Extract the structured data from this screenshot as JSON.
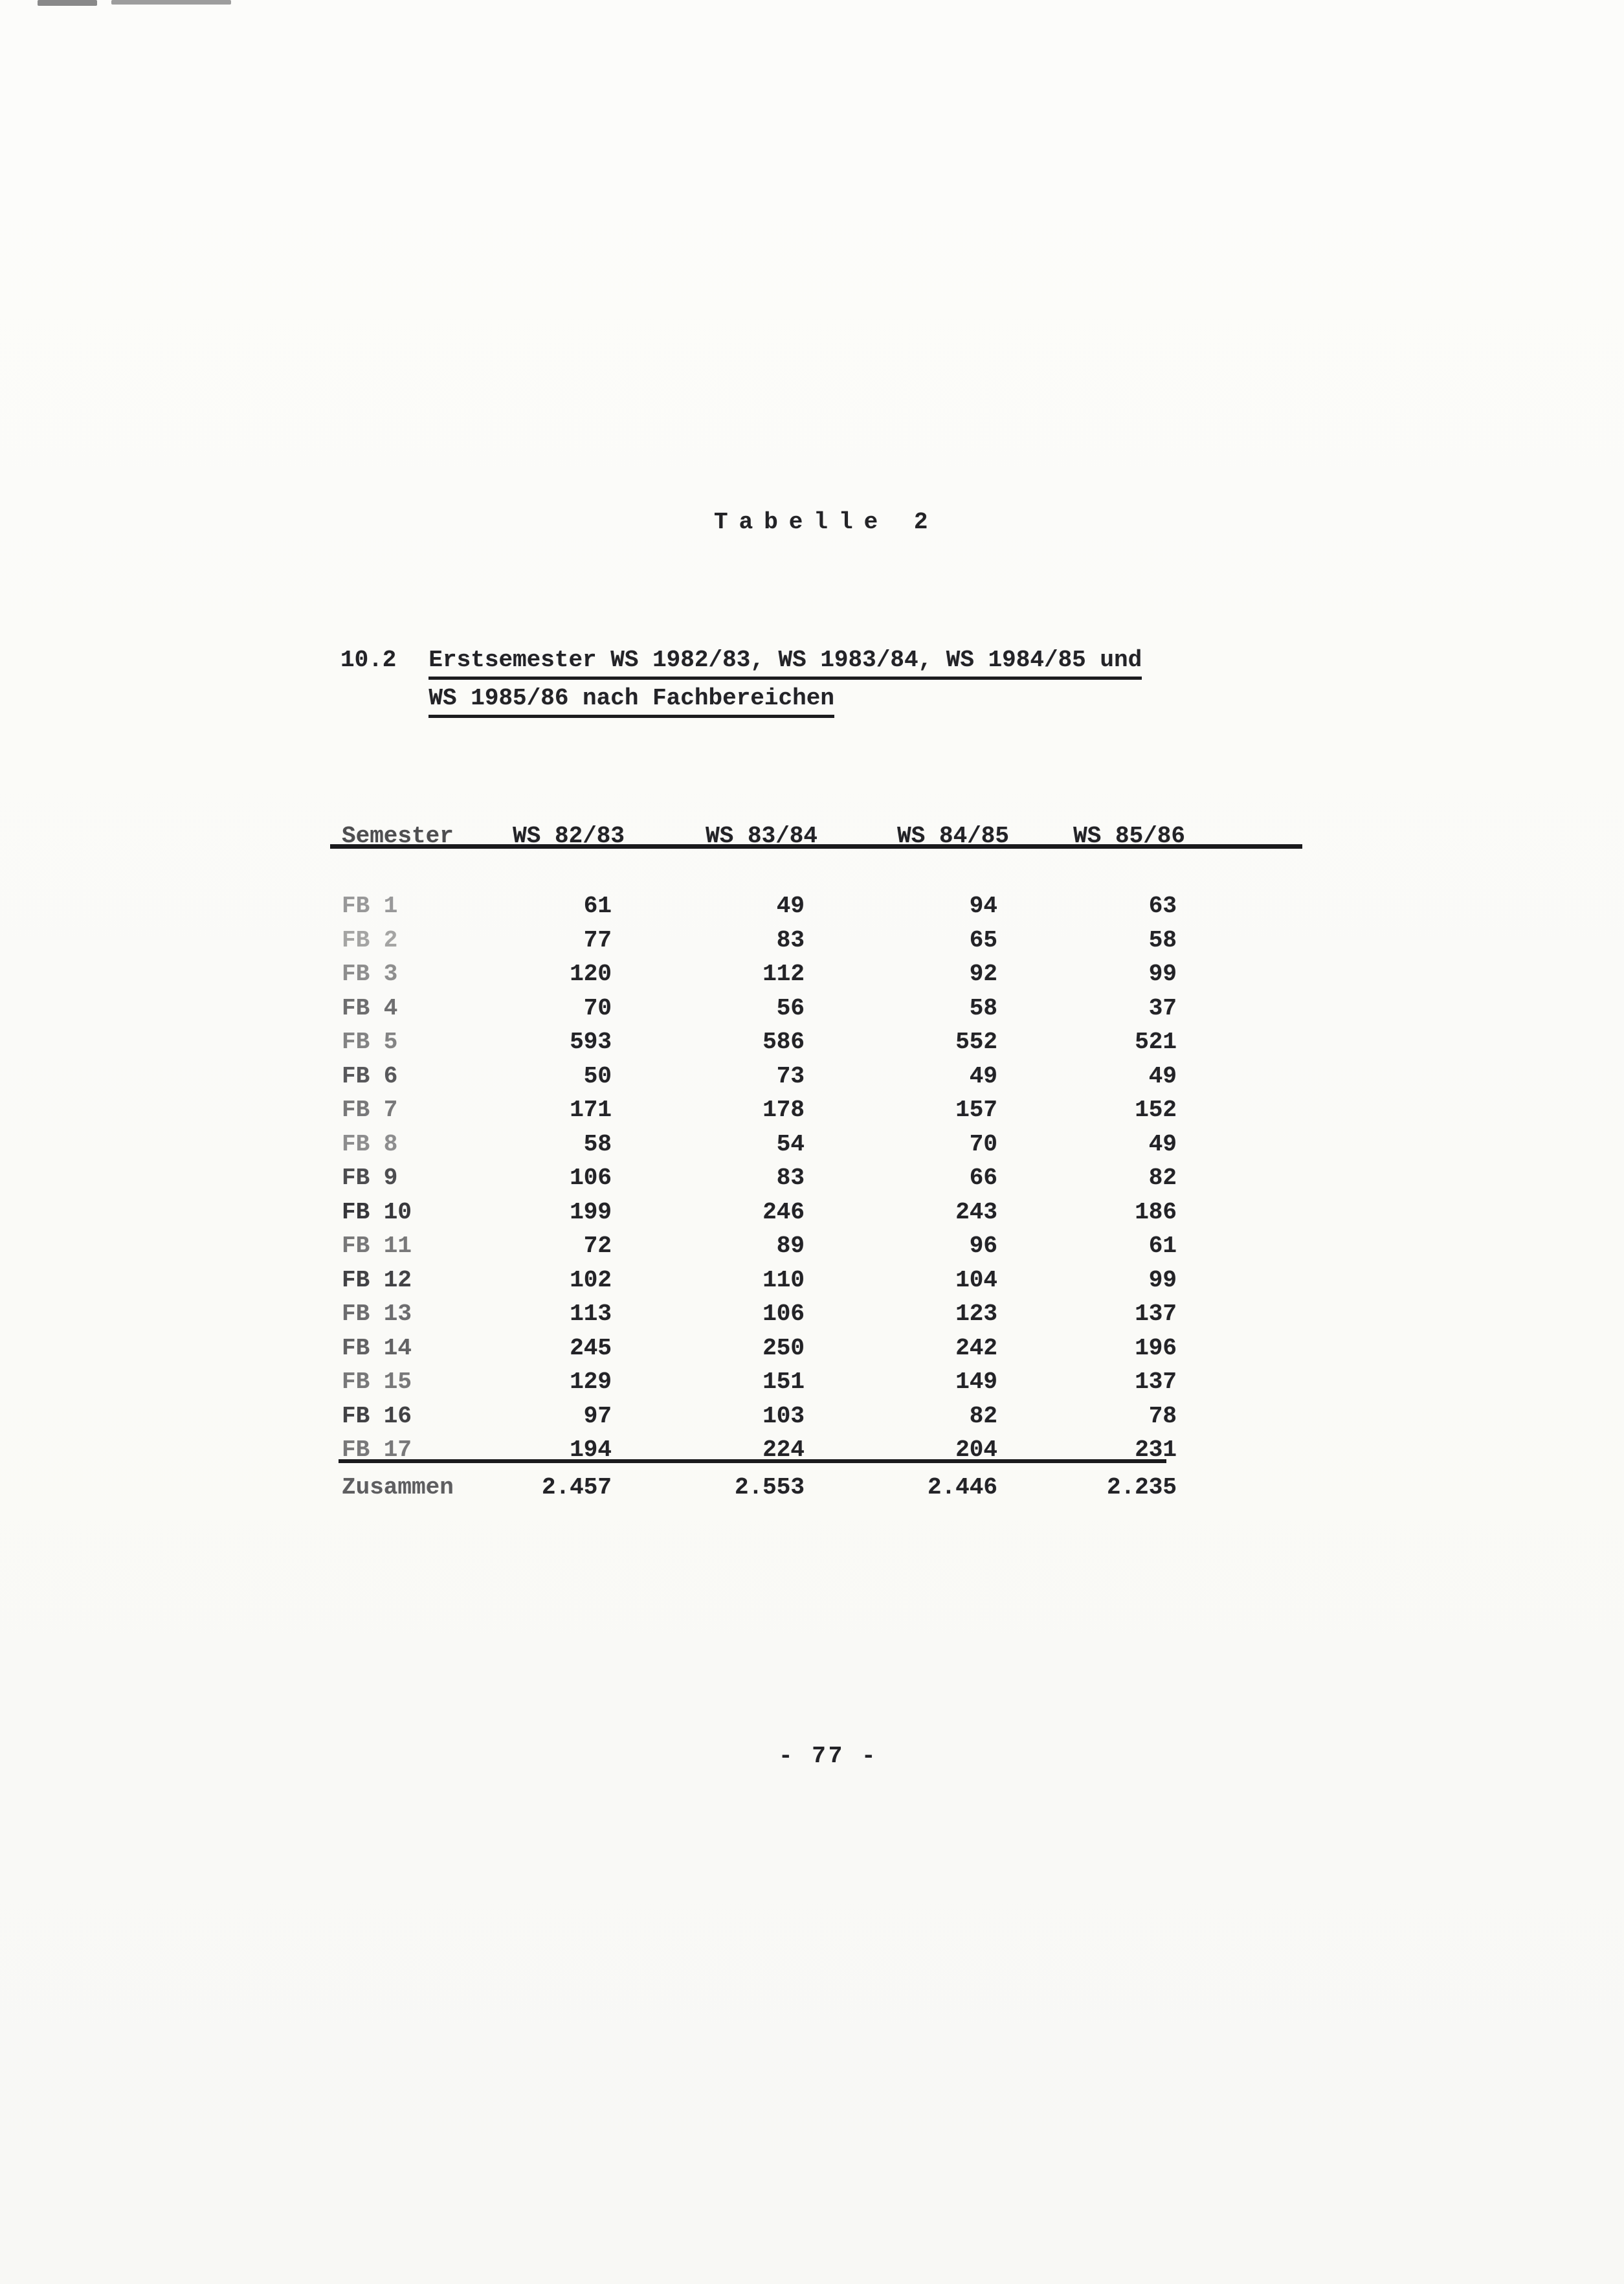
{
  "page": {
    "title": "Tabelle 2",
    "number": "- 77 -"
  },
  "section": {
    "number": "10.2",
    "title_line1": "Erstsemester WS 1982/83, WS 1983/84, WS 1984/85 und",
    "title_line2": "WS 1985/86 nach Fachbereichen"
  },
  "table": {
    "header": {
      "row_label": "Semester",
      "columns": [
        "WS 82/83",
        "WS 83/84",
        "WS 84/85",
        "WS 85/86"
      ]
    },
    "rows": [
      {
        "label": "FB 1",
        "values": [
          "61",
          "49",
          "94",
          "63"
        ]
      },
      {
        "label": "FB 2",
        "values": [
          "77",
          "83",
          "65",
          "58"
        ]
      },
      {
        "label": "FB 3",
        "values": [
          "120",
          "112",
          "92",
          "99"
        ]
      },
      {
        "label": "FB 4",
        "values": [
          "70",
          "56",
          "58",
          "37"
        ]
      },
      {
        "label": "FB 5",
        "values": [
          "593",
          "586",
          "552",
          "521"
        ]
      },
      {
        "label": "FB 6",
        "values": [
          "50",
          "73",
          "49",
          "49"
        ]
      },
      {
        "label": "FB 7",
        "values": [
          "171",
          "178",
          "157",
          "152"
        ]
      },
      {
        "label": "FB 8",
        "values": [
          "58",
          "54",
          "70",
          "49"
        ]
      },
      {
        "label": "FB 9",
        "values": [
          "106",
          "83",
          "66",
          "82"
        ]
      },
      {
        "label": "FB 10",
        "values": [
          "199",
          "246",
          "243",
          "186"
        ]
      },
      {
        "label": "FB 11",
        "values": [
          "72",
          "89",
          "96",
          "61"
        ]
      },
      {
        "label": "FB 12",
        "values": [
          "102",
          "110",
          "104",
          "99"
        ]
      },
      {
        "label": "FB 13",
        "values": [
          "113",
          "106",
          "123",
          "137"
        ]
      },
      {
        "label": "FB 14",
        "values": [
          "245",
          "250",
          "242",
          "196"
        ]
      },
      {
        "label": "FB 15",
        "values": [
          "129",
          "151",
          "149",
          "137"
        ]
      },
      {
        "label": "FB 16",
        "values": [
          "97",
          "103",
          "82",
          "78"
        ]
      },
      {
        "label": "FB 17",
        "values": [
          "194",
          "224",
          "204",
          "231"
        ]
      }
    ],
    "total": {
      "label": "Zusammen",
      "values": [
        "2.457",
        "2.553",
        "2.446",
        "2.235"
      ]
    }
  }
}
